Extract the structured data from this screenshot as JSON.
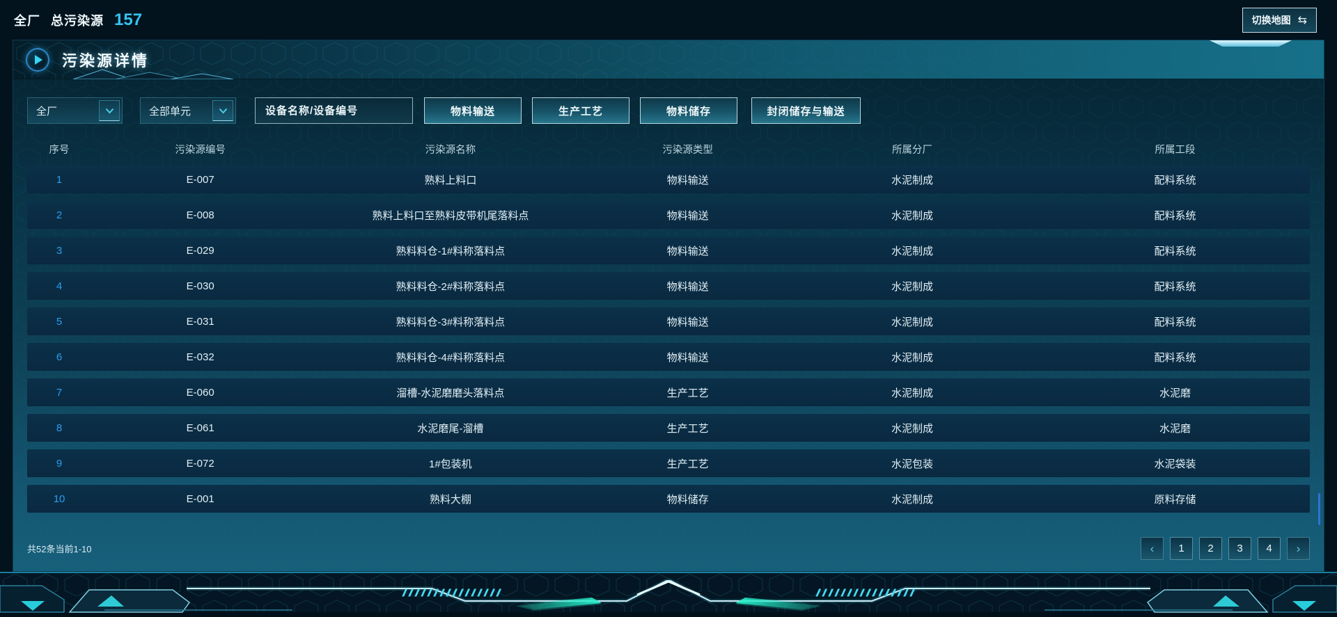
{
  "topbar": {
    "scope_label": "全厂",
    "total_label": "总污染源",
    "total_count": "157",
    "switch_map_label": "切换地图"
  },
  "icons": {
    "switch_map": "⇆",
    "prev": "‹",
    "next": "›"
  },
  "panel": {
    "title": "污染源详情"
  },
  "filters": {
    "factory_select_value": "全厂",
    "unit_select_value": "全部单元",
    "search_placeholder": "设备名称/设备编号",
    "type_buttons": [
      "物料输送",
      "生产工艺",
      "物料储存",
      "封闭储存与输送"
    ]
  },
  "table": {
    "columns": [
      "序号",
      "污染源编号",
      "污染源名称",
      "污染源类型",
      "所属分厂",
      "所属工段"
    ],
    "rows": [
      [
        "1",
        "E-007",
        "熟料上料口",
        "物料输送",
        "水泥制成",
        "配料系统"
      ],
      [
        "2",
        "E-008",
        "熟料上料口至熟料皮带机尾落料点",
        "物料输送",
        "水泥制成",
        "配料系统"
      ],
      [
        "3",
        "E-029",
        "熟料料仓-1#料称落料点",
        "物料输送",
        "水泥制成",
        "配料系统"
      ],
      [
        "4",
        "E-030",
        "熟料料仓-2#料称落料点",
        "物料输送",
        "水泥制成",
        "配料系统"
      ],
      [
        "5",
        "E-031",
        "熟料料仓-3#料称落料点",
        "物料输送",
        "水泥制成",
        "配料系统"
      ],
      [
        "6",
        "E-032",
        "熟料料仓-4#料称落料点",
        "物料输送",
        "水泥制成",
        "配料系统"
      ],
      [
        "7",
        "E-060",
        "溜槽-水泥磨磨头落料点",
        "生产工艺",
        "水泥制成",
        "水泥磨"
      ],
      [
        "8",
        "E-061",
        "水泥磨尾-溜槽",
        "生产工艺",
        "水泥制成",
        "水泥磨"
      ],
      [
        "9",
        "E-072",
        "1#包装机",
        "生产工艺",
        "水泥包装",
        "水泥袋装"
      ],
      [
        "10",
        "E-001",
        "熟料大棚",
        "物料储存",
        "水泥制成",
        "原料存储"
      ]
    ],
    "summary": "共52条当前1-10"
  },
  "pagination": {
    "pages": [
      "1",
      "2",
      "3",
      "4"
    ]
  },
  "colors": {
    "accent_cyan": "#35d6f2",
    "count_blue": "#35c3f2",
    "link_blue": "#2b9df0",
    "panel_teal": "#145570"
  }
}
